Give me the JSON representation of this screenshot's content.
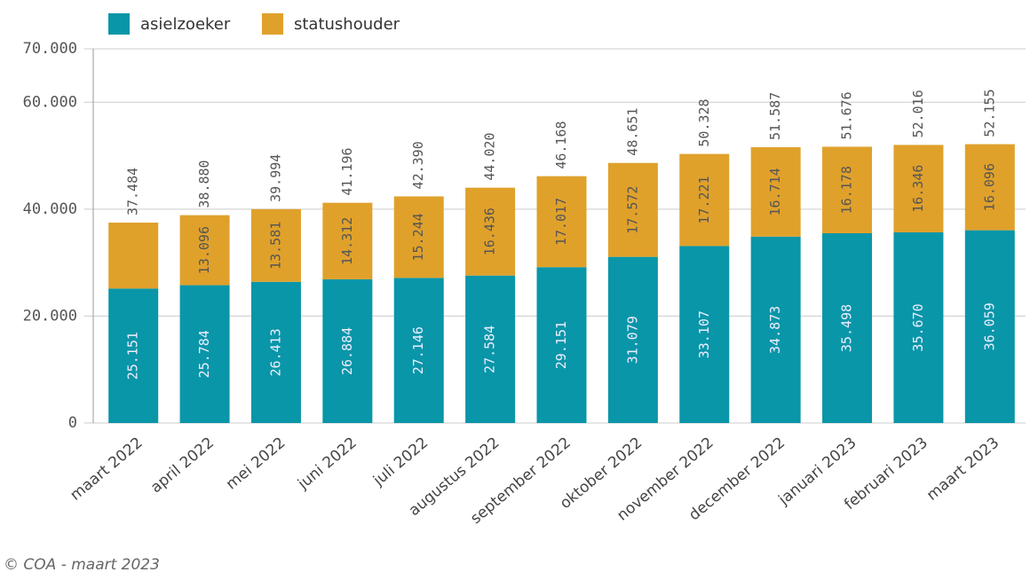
{
  "chart_data": {
    "type": "stacked_bar",
    "categories": [
      "maart 2022",
      "april 2022",
      "mei 2022",
      "juni 2022",
      "juli 2022",
      "augustus 2022",
      "september 2022",
      "oktober 2022",
      "november 2022",
      "december 2022",
      "januari 2023",
      "februari 2023",
      "maart 2023"
    ],
    "series": [
      {
        "name": "asielzoeker",
        "color": "#0996a8",
        "values": [
          25151,
          25784,
          26413,
          26884,
          27146,
          27584,
          29151,
          31079,
          33107,
          34873,
          35498,
          35670,
          36059
        ],
        "value_labels": [
          "25.151",
          "25.784",
          "26.413",
          "26.884",
          "27.146",
          "27.584",
          "29.151",
          "31.079",
          "33.107",
          "34.873",
          "35.498",
          "35.670",
          "36.059"
        ]
      },
      {
        "name": "statushouder",
        "color": "#e0a12b",
        "values": [
          12333,
          13096,
          13581,
          14312,
          15244,
          16436,
          17017,
          17572,
          17221,
          16714,
          16178,
          16346,
          16096
        ],
        "value_labels": [
          null,
          "13.096",
          "13.581",
          "14.312",
          "15.244",
          "16.436",
          "17.017",
          "17.572",
          "17.221",
          "16.714",
          "16.178",
          "16.346",
          "16.096"
        ]
      }
    ],
    "totals": {
      "values": [
        37484,
        38880,
        39994,
        41196,
        42390,
        44020,
        46168,
        48651,
        50328,
        51587,
        51676,
        52016,
        52155
      ],
      "value_labels": [
        "37.484",
        "38.880",
        "39.994",
        "41.196",
        "42.390",
        "44.020",
        "46.168",
        "48.651",
        "50.328",
        "51.587",
        "51.676",
        "52.016",
        "52.155"
      ]
    },
    "ylim": [
      0,
      70000
    ],
    "yticks": [
      {
        "value": 0,
        "label": "0"
      },
      {
        "value": 20000,
        "label": "20.000"
      },
      {
        "value": 40000,
        "label": "40.000"
      },
      {
        "value": 60000,
        "label": "60.000"
      },
      {
        "value": 70000,
        "label": "70.000"
      }
    ],
    "grid": true,
    "footer": "© COA - maart 2023"
  }
}
